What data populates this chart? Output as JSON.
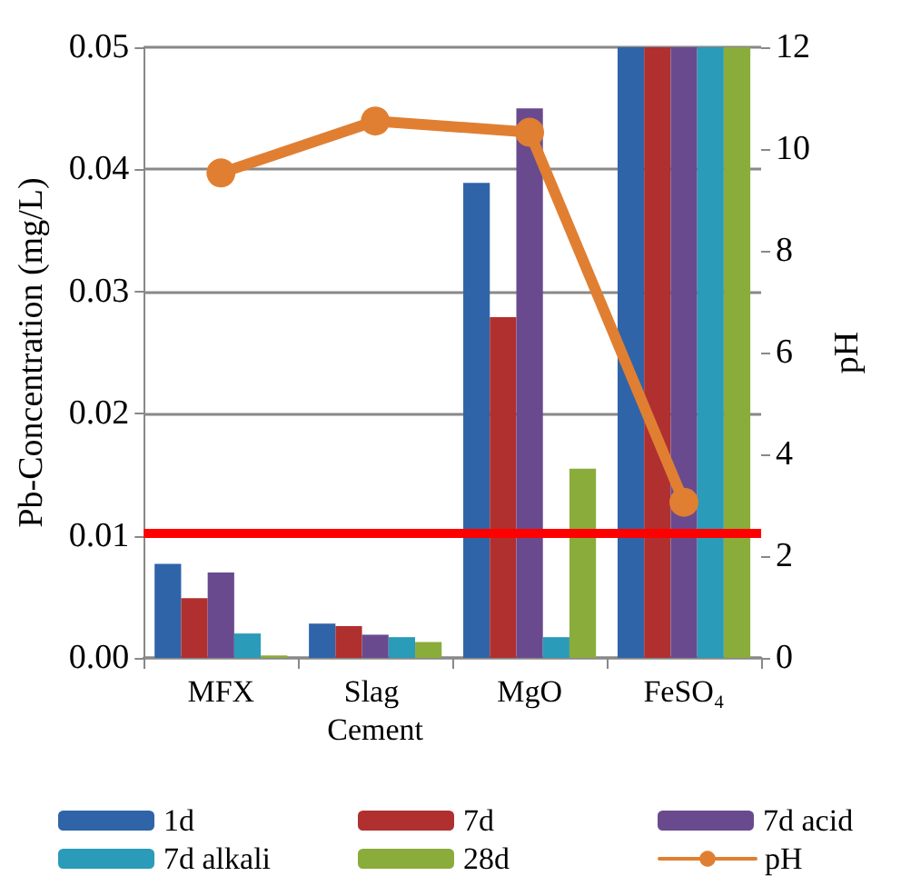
{
  "chart_data": {
    "type": "bar",
    "categories": [
      "MFX",
      "Slag Cement",
      "MgO",
      "FeSO₄"
    ],
    "ylabel": "Pb-Concentration (mg/L)",
    "y2label": "pH",
    "series": [
      {
        "name": "1d",
        "color": "#2f64a8",
        "values": [
          0.0077,
          0.0028,
          0.0389,
          0.05
        ]
      },
      {
        "name": "7d",
        "color": "#b0302f",
        "values": [
          0.0049,
          0.0026,
          0.0279,
          0.05
        ]
      },
      {
        "name": "7d acid",
        "color": "#6a4a8e",
        "values": [
          0.007,
          0.0019,
          0.045,
          0.05
        ]
      },
      {
        "name": "7d alkali",
        "color": "#2a9bb8",
        "values": [
          0.002,
          0.0017,
          0.0017,
          0.05
        ]
      },
      {
        "name": "28d",
        "color": "#8aac3a",
        "values": [
          0.0002,
          0.0013,
          0.0155,
          0.05
        ]
      },
      {
        "name": "pH",
        "type": "line",
        "axis": "y2",
        "color": "#e07f32",
        "marker": "circle",
        "values": [
          9.53,
          10.55,
          10.33,
          3.06
        ]
      }
    ],
    "ylim": [
      0,
      0.05
    ],
    "yticks": [
      {
        "value": 0,
        "label": "0.00"
      },
      {
        "value": 0.01,
        "label": "0.01"
      },
      {
        "value": 0.02,
        "label": "0.02"
      },
      {
        "value": 0.03,
        "label": "0.03"
      },
      {
        "value": 0.04,
        "label": "0.04"
      },
      {
        "value": 0.05,
        "label": "0.05"
      }
    ],
    "y2lim": [
      0,
      12
    ],
    "y2ticks": [
      0,
      2,
      4,
      6,
      8,
      10,
      12
    ],
    "ref_lines": [
      {
        "axis": "y",
        "value": 0.0102,
        "color": "#ff0000"
      }
    ],
    "grid": "y",
    "legend": "bottom"
  }
}
